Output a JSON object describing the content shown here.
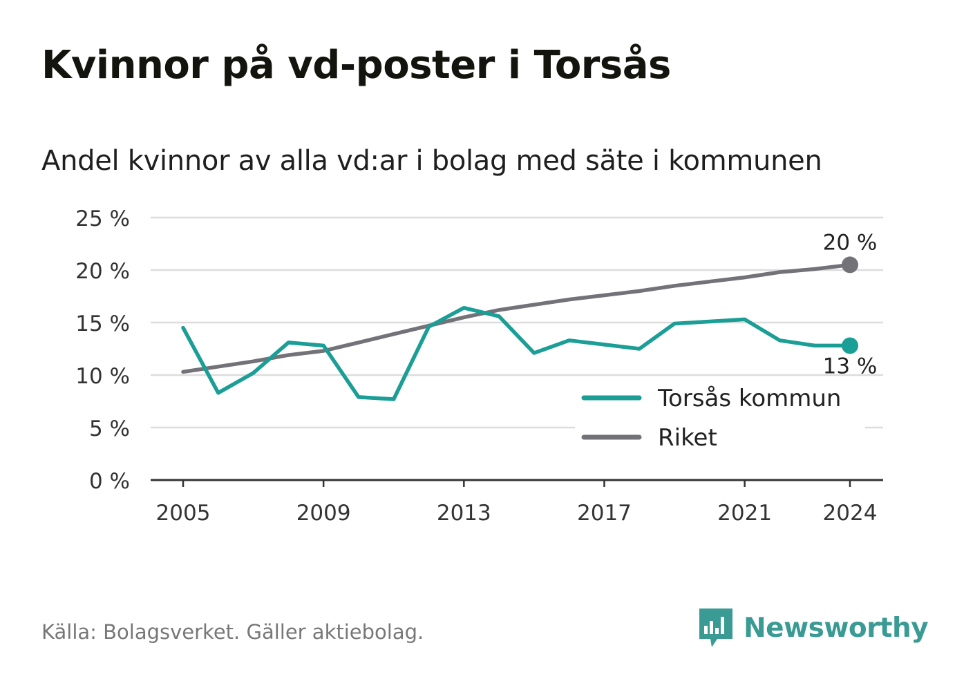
{
  "header": {
    "title": "Kvinnor på vd-poster i Torsås",
    "subtitle": "Andel kvinnor av alla vd:ar i bolag med säte i kommunen"
  },
  "footer": {
    "source": "Källa: Bolagsverket. Gäller aktiebolag.",
    "brand_name": "Newsworthy",
    "brand_icon": "newsworthy-logo-icon",
    "brand_color": "#3a9b94"
  },
  "chart_data": {
    "type": "line",
    "x": [
      2005,
      2006,
      2007,
      2008,
      2009,
      2010,
      2011,
      2012,
      2013,
      2014,
      2015,
      2016,
      2017,
      2018,
      2019,
      2020,
      2021,
      2022,
      2023,
      2024
    ],
    "x_ticks": [
      "2005",
      "2009",
      "2013",
      "2017",
      "2021",
      "2024"
    ],
    "y_ticks": [
      "0 %",
      "5 %",
      "10 %",
      "15 %",
      "20 %",
      "25 %"
    ],
    "ylim": [
      0,
      25
    ],
    "grid": true,
    "legend_position": "bottom-right",
    "series": [
      {
        "name": "Torsås kommun",
        "color": "#1a9e96",
        "values": [
          14.5,
          8.3,
          10.2,
          13.1,
          12.8,
          7.9,
          7.7,
          14.6,
          16.4,
          15.6,
          12.1,
          13.3,
          12.9,
          12.5,
          14.9,
          15.1,
          15.3,
          13.3,
          12.8,
          12.8
        ],
        "end_label": "13 %"
      },
      {
        "name": "Riket",
        "color": "#737279",
        "values": [
          10.3,
          10.8,
          11.3,
          11.9,
          12.3,
          13.1,
          13.9,
          14.7,
          15.5,
          16.2,
          16.7,
          17.2,
          17.6,
          18.0,
          18.5,
          18.9,
          19.3,
          19.8,
          20.1,
          20.5
        ],
        "end_label": "20 %"
      }
    ]
  }
}
